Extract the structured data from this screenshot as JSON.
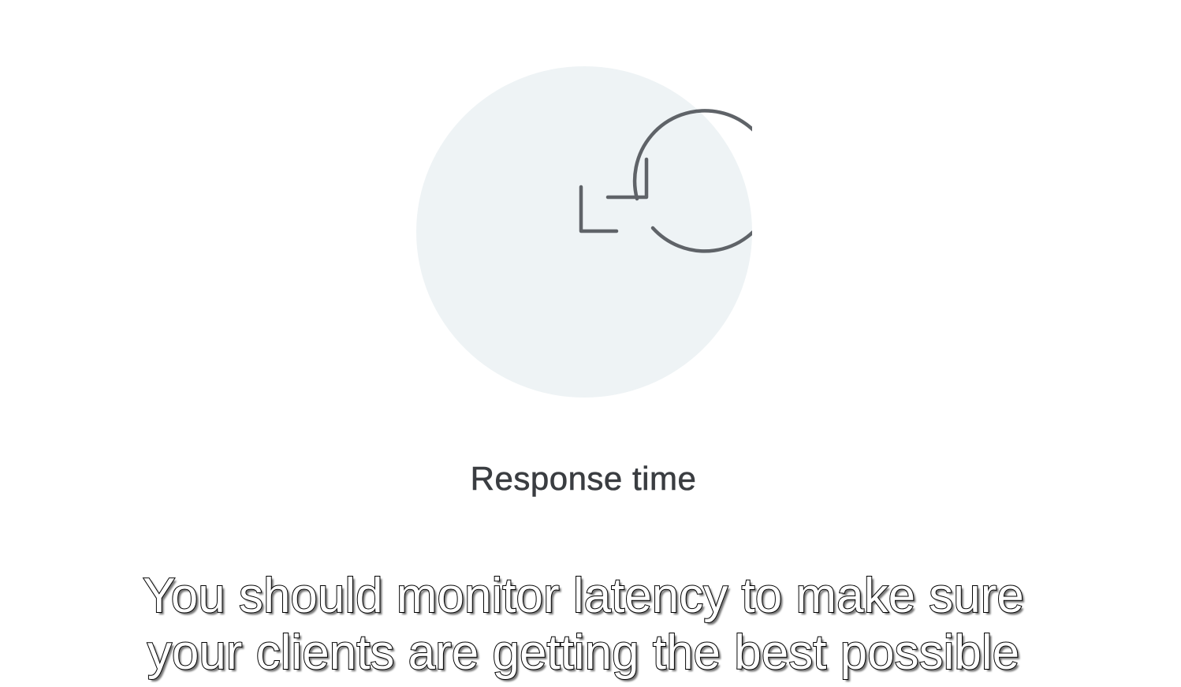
{
  "slide": {
    "label": "Response time",
    "icon": "clock-refresh-icon",
    "colors": {
      "background": "#ffffff",
      "circle": "#eef3f5",
      "icon_stroke": "#5f6368",
      "label": "#3a3d41"
    }
  },
  "subtitle": {
    "line1": "You should monitor latency to make sure",
    "line2": "your clients are getting the best possible"
  }
}
